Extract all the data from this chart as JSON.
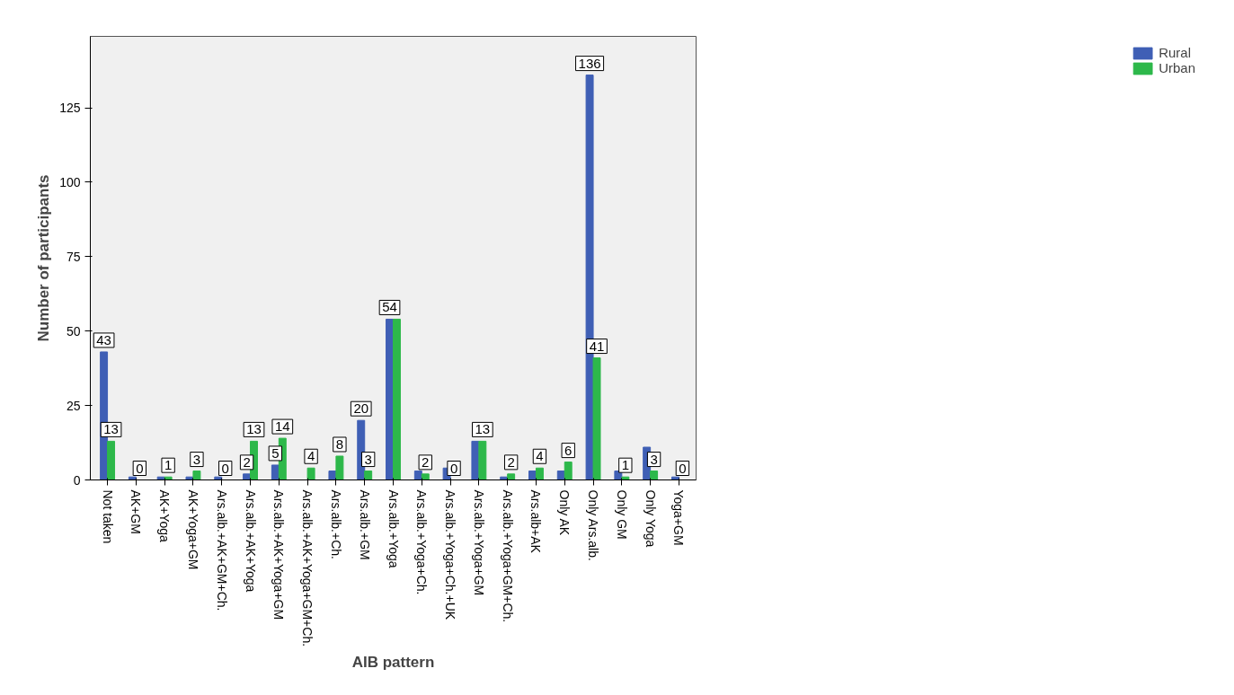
{
  "chart_data": {
    "type": "bar",
    "xlabel": "AIB pattern",
    "ylabel": "Number of participants",
    "categories": [
      "Not taken",
      "AK+GM",
      "AK+Yoga",
      "AK+Yoga+GM",
      "Ars.alb.+AK+GM+Ch.",
      "Ars.alb.+AK+Yoga",
      "Ars.alb.+AK+Yoga+GM",
      "Ars.alb.+AK+Yoga+GM+Ch.",
      "Ars.alb.+Ch.",
      "Ars.alb.+GM",
      "Ars.alb.+Yoga",
      "Ars.alb.+Yoga+Ch.",
      "Ars.alb.+Yoga+Ch.+UK",
      "Ars.alb.+Yoga+GM",
      "Ars.alb.+Yoga+GM+Ch.",
      "Ars.alb+AK",
      "Only AK",
      "Only Ars.alb.",
      "Only GM",
      "Only Yoga",
      "Yoga+GM"
    ],
    "series": [
      {
        "name": "Rural",
        "color": "#3f5fb5",
        "values": [
          43,
          1,
          1,
          1,
          1,
          2,
          5,
          0,
          3,
          20,
          54,
          3,
          4,
          13,
          1,
          3,
          3,
          136,
          3,
          11,
          1
        ],
        "value_labels": [
          "43",
          null,
          null,
          null,
          null,
          "2",
          "5",
          null,
          null,
          "20",
          "54",
          null,
          null,
          null,
          null,
          null,
          null,
          "136",
          null,
          null,
          null
        ]
      },
      {
        "name": "Urban",
        "color": "#2db84a",
        "values": [
          13,
          0,
          1,
          3,
          0,
          13,
          14,
          4,
          8,
          3,
          54,
          2,
          0,
          13,
          2,
          4,
          6,
          41,
          1,
          3,
          0
        ],
        "value_labels": [
          "13",
          "0",
          "1",
          "3",
          "0",
          "13",
          "14",
          "4",
          "8",
          "3",
          null,
          "2",
          "0",
          "13",
          "2",
          "4",
          "6",
          "41",
          "1",
          "3",
          "0"
        ]
      }
    ],
    "ylim": [
      0,
      149
    ],
    "yticks": [
      0,
      25,
      50,
      75,
      100,
      125
    ],
    "grid": false,
    "legend": "top right"
  }
}
